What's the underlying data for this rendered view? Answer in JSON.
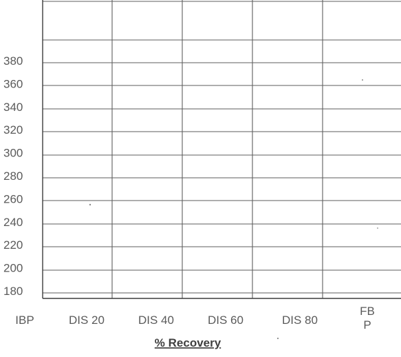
{
  "chart_data": {
    "type": "line",
    "title": "",
    "xlabel": "% Recovery",
    "ylabel": "",
    "categories": [
      "IBP",
      "DIS 20",
      "DIS 40",
      "DIS 60",
      "DIS 80",
      "FBP"
    ],
    "category_display": [
      [
        "IBP"
      ],
      [
        "DIS 20"
      ],
      [
        "DIS 40"
      ],
      [
        "DIS 60"
      ],
      [
        "DIS 80"
      ],
      [
        "FB",
        "P"
      ]
    ],
    "y_ticks": [
      180,
      200,
      220,
      240,
      260,
      280,
      300,
      320,
      340,
      360,
      380
    ],
    "ylim": [
      170,
      400
    ],
    "series": [],
    "grid": true,
    "legend": "none"
  }
}
